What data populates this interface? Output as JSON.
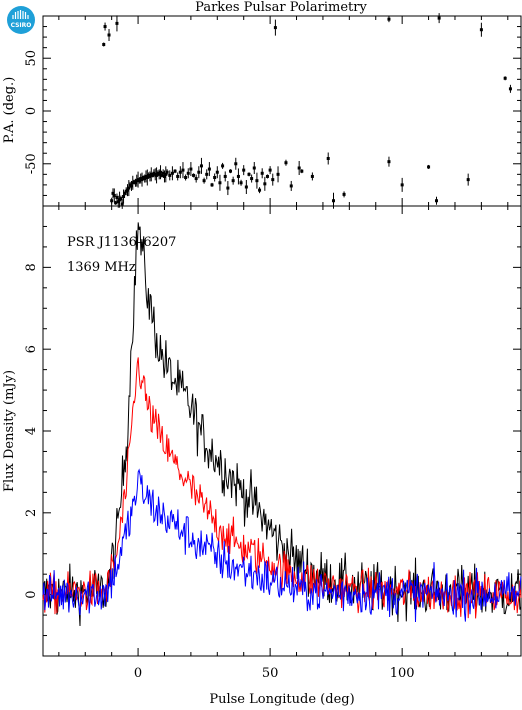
{
  "figure": {
    "title": "Parkes Pulsar Polarimetry",
    "logo_label": "CSIRO",
    "annotation_source": "PSR J1136–6207",
    "annotation_freq": "1369 MHz",
    "xlabel": "Pulse Longitude (deg)"
  },
  "chart_data": [
    {
      "type": "scatter",
      "panel": "position-angle",
      "ylabel": "P.A. (deg.)",
      "xlim": [
        -36,
        145
      ],
      "ylim": [
        -90,
        90
      ],
      "xticks": [
        0,
        50,
        100
      ],
      "yticks": [
        -50,
        0,
        50
      ],
      "error_bars": true,
      "points": [
        [
          -13,
          63
        ],
        [
          -12.5,
          80
        ],
        [
          -11,
          72
        ],
        [
          -8,
          83
        ],
        [
          -10,
          -85
        ],
        [
          -9.5,
          -78
        ],
        [
          -9,
          -80
        ],
        [
          -8.5,
          -87
        ],
        [
          -8,
          -82
        ],
        [
          -7.5,
          -86
        ],
        [
          -7,
          -84
        ],
        [
          -6.5,
          -83
        ],
        [
          -6,
          -88
        ],
        [
          -5.5,
          -81
        ],
        [
          -5,
          -78
        ],
        [
          -4.5,
          -76
        ],
        [
          -4,
          -75
        ],
        [
          -3.5,
          -73
        ],
        [
          -3,
          -70
        ],
        [
          -2.5,
          -71
        ],
        [
          -2,
          -68
        ],
        [
          -1.5,
          -67
        ],
        [
          -1,
          -68
        ],
        [
          -0.5,
          -66
        ],
        [
          0,
          -65
        ],
        [
          0.5,
          -66
        ],
        [
          1,
          -64
        ],
        [
          1.5,
          -65
        ],
        [
          2,
          -63
        ],
        [
          2.5,
          -64
        ],
        [
          3,
          -62
        ],
        [
          3.5,
          -63
        ],
        [
          4,
          -61
        ],
        [
          4.5,
          -62
        ],
        [
          5,
          -60
        ],
        [
          5.5,
          -61
        ],
        [
          6,
          -59
        ],
        [
          6.5,
          -60
        ],
        [
          7,
          -61
        ],
        [
          7.5,
          -59
        ],
        [
          8,
          -60
        ],
        [
          8.5,
          -58
        ],
        [
          9,
          -61
        ],
        [
          9.5,
          -59
        ],
        [
          10,
          -62
        ],
        [
          10.5,
          -60
        ],
        [
          11,
          -58
        ],
        [
          12,
          -61
        ],
        [
          13,
          -59
        ],
        [
          14,
          -57
        ],
        [
          15,
          -62
        ],
        [
          16,
          -58
        ],
        [
          17,
          -56
        ],
        [
          18,
          -63
        ],
        [
          19,
          -59
        ],
        [
          20,
          -55
        ],
        [
          21,
          -61
        ],
        [
          22,
          -64
        ],
        [
          23,
          -58
        ],
        [
          24,
          -52
        ],
        [
          25,
          -66
        ],
        [
          26,
          -60
        ],
        [
          27,
          -55
        ],
        [
          28,
          -70
        ],
        [
          29,
          -63
        ],
        [
          30,
          -58
        ],
        [
          31,
          -68
        ],
        [
          32,
          -52
        ],
        [
          33,
          -62
        ],
        [
          34,
          -73
        ],
        [
          35,
          -57
        ],
        [
          36,
          -66
        ],
        [
          37,
          -50
        ],
        [
          38,
          -62
        ],
        [
          39,
          -68
        ],
        [
          40,
          -56
        ],
        [
          41,
          -72
        ],
        [
          42,
          -60
        ],
        [
          43,
          -64
        ],
        [
          44,
          -54
        ],
        [
          45,
          -66
        ],
        [
          46,
          -75
        ],
        [
          47,
          -59
        ],
        [
          48,
          -69
        ],
        [
          49,
          -62
        ],
        [
          50,
          -56
        ],
        [
          51,
          -65
        ],
        [
          53,
          -60
        ],
        [
          56,
          -49
        ],
        [
          58,
          -71
        ],
        [
          61,
          -54
        ],
        [
          62,
          -57
        ],
        [
          66,
          -62
        ],
        [
          72,
          -45
        ],
        [
          74,
          -85
        ],
        [
          78,
          -79
        ],
        [
          95,
          -48
        ],
        [
          100,
          -70
        ],
        [
          110,
          -53
        ],
        [
          113,
          -85
        ],
        [
          125,
          -65
        ],
        [
          52,
          79
        ],
        [
          95,
          87
        ],
        [
          114,
          88
        ],
        [
          130,
          77
        ],
        [
          139,
          31
        ],
        [
          141,
          21
        ]
      ]
    },
    {
      "type": "line",
      "panel": "flux-density",
      "ylabel": "Flux Density (mJy)",
      "xlim": [
        -36,
        145
      ],
      "ylim": [
        -1.5,
        9.5
      ],
      "xticks": [
        0,
        50,
        100
      ],
      "yticks": [
        0,
        2,
        4,
        6,
        8
      ],
      "series": [
        {
          "color": "#000000",
          "peak_x": 0,
          "peak": 9.1,
          "envelope": [
            [
              -36,
              0
            ],
            [
              -12,
              0.1
            ],
            [
              -8,
              1.4
            ],
            [
              -4,
              4.0
            ],
            [
              -2,
              6.8
            ],
            [
              0,
              9.1
            ],
            [
              4,
              7.2
            ],
            [
              8,
              6.0
            ],
            [
              12,
              5.4
            ],
            [
              16,
              5.0
            ],
            [
              20,
              4.6
            ],
            [
              24,
              3.9
            ],
            [
              30,
              3.3
            ],
            [
              36,
              2.8
            ],
            [
              44,
              2.2
            ],
            [
              52,
              1.4
            ],
            [
              60,
              0.8
            ],
            [
              70,
              0.4
            ],
            [
              85,
              0.15
            ],
            [
              145,
              0
            ]
          ]
        },
        {
          "color": "#ff0000",
          "peak_x": 0,
          "peak": 5.8,
          "envelope": [
            [
              -36,
              0
            ],
            [
              -12,
              0.1
            ],
            [
              -8,
              1.0
            ],
            [
              -4,
              2.8
            ],
            [
              -2,
              4.4
            ],
            [
              0,
              5.7
            ],
            [
              4,
              4.5
            ],
            [
              8,
              3.9
            ],
            [
              12,
              3.4
            ],
            [
              16,
              3.0
            ],
            [
              20,
              2.6
            ],
            [
              24,
              2.2
            ],
            [
              30,
              1.7
            ],
            [
              36,
              1.3
            ],
            [
              44,
              1.0
            ],
            [
              52,
              0.7
            ],
            [
              60,
              0.45
            ],
            [
              70,
              0.25
            ],
            [
              85,
              0.1
            ],
            [
              145,
              0
            ]
          ]
        },
        {
          "color": "#0000ff",
          "peak_x": 0,
          "peak": 3.0,
          "envelope": [
            [
              -36,
              0
            ],
            [
              -12,
              0.05
            ],
            [
              -8,
              0.7
            ],
            [
              -4,
              1.6
            ],
            [
              -2,
              2.1
            ],
            [
              0,
              2.7
            ],
            [
              4,
              2.3
            ],
            [
              8,
              2.0
            ],
            [
              12,
              1.8
            ],
            [
              16,
              1.6
            ],
            [
              20,
              1.4
            ],
            [
              24,
              1.2
            ],
            [
              30,
              0.9
            ],
            [
              36,
              0.7
            ],
            [
              44,
              0.5
            ],
            [
              52,
              0.3
            ],
            [
              60,
              0.15
            ],
            [
              70,
              0.05
            ],
            [
              145,
              0
            ]
          ]
        }
      ],
      "noise_rms": {
        "#000000": 0.45,
        "#ff0000": 0.35,
        "#0000ff": 0.38
      }
    }
  ]
}
